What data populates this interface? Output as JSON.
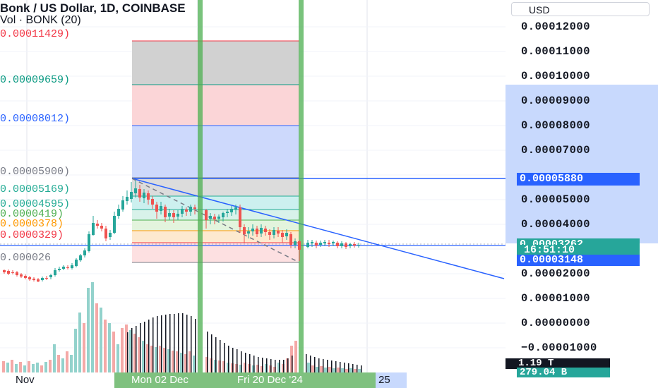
{
  "header": {
    "title": "Bonk / US Dollar, 1D, COINBASE",
    "volume": "Vol · BONK (20)"
  },
  "currency_button": {
    "label": "USD"
  },
  "price_axis": {
    "labels": [
      "0.00012000",
      "0.00011000",
      "0.00010000",
      "0.00009000",
      "0.00008000",
      "0.00007000",
      "0.00005000",
      "0.00004000",
      "0.00002000",
      "0.00001000",
      "0.00000000",
      "−0.00001000"
    ],
    "line_badge": "0.00005880",
    "last_price": "0.00003262",
    "countdown": "16:51:10",
    "low_badge": "0.00003148",
    "volume_badge": "1.19 T",
    "volume_ma_badge": "279.04 B"
  },
  "fib_labels": [
    {
      "text": "0.00011429)",
      "color": "#f23645"
    },
    {
      "text": "0.00009659)",
      "color": "#089981"
    },
    {
      "text": "0.00008012)",
      "color": "#2962ff"
    },
    {
      "text": "0.00005900)",
      "color": "#787b86"
    },
    {
      "text": "0.00005169)",
      "color": "#22ab94"
    },
    {
      "text": "0.00004595)",
      "color": "#22ab94"
    },
    {
      "text": "0.0000419)",
      "color": "#4caf50"
    },
    {
      "text": "0.0000378)",
      "color": "#ff9800"
    },
    {
      "text": "0.0000329)",
      "color": "#f23645"
    },
    {
      "text": "0.000026",
      "color": "#787b86"
    }
  ],
  "time_axis": {
    "left_label": "Nov",
    "range_label": "Mon 02 Dec",
    "range_label_end": "Fri 20 Dec '24",
    "right_label": "25"
  },
  "colors": {
    "up": "#26a69a",
    "down": "#ef5350",
    "trendline": "#2962ff",
    "highlight": "#4caf50"
  }
}
